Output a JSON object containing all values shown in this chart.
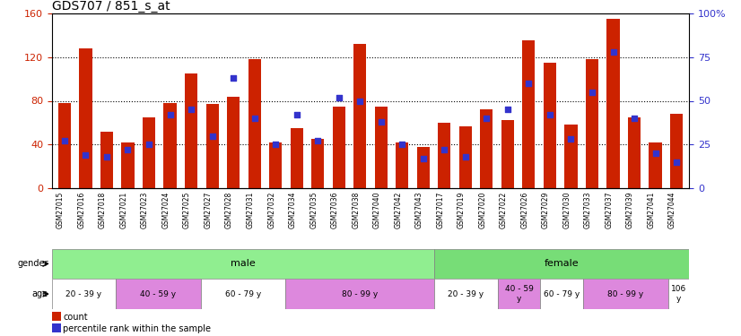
{
  "title": "GDS707 / 851_s_at",
  "samples": [
    "GSM27015",
    "GSM27016",
    "GSM27018",
    "GSM27021",
    "GSM27023",
    "GSM27024",
    "GSM27025",
    "GSM27027",
    "GSM27028",
    "GSM27031",
    "GSM27032",
    "GSM27034",
    "GSM27035",
    "GSM27036",
    "GSM27038",
    "GSM27040",
    "GSM27042",
    "GSM27043",
    "GSM27017",
    "GSM27019",
    "GSM27020",
    "GSM27022",
    "GSM27026",
    "GSM27029",
    "GSM27030",
    "GSM27033",
    "GSM27037",
    "GSM27039",
    "GSM27041",
    "GSM27044"
  ],
  "counts": [
    78,
    128,
    52,
    42,
    65,
    78,
    105,
    77,
    84,
    118,
    42,
    55,
    45,
    75,
    132,
    75,
    42,
    38,
    60,
    57,
    72,
    62,
    135,
    115,
    58,
    118,
    155,
    65,
    42,
    68
  ],
  "percentiles": [
    27,
    19,
    18,
    22,
    25,
    42,
    45,
    30,
    63,
    40,
    25,
    42,
    27,
    52,
    50,
    38,
    25,
    17,
    22,
    18,
    40,
    45,
    60,
    42,
    28,
    55,
    78,
    40,
    20,
    15
  ],
  "gender_groups": [
    {
      "label": "male",
      "start": 0,
      "end": 18,
      "color": "#90ee90"
    },
    {
      "label": "female",
      "start": 18,
      "end": 30,
      "color": "#77dd77"
    }
  ],
  "age_groups": [
    {
      "label": "20 - 39 y",
      "start": 0,
      "end": 3,
      "color": "#ffffff"
    },
    {
      "label": "40 - 59 y",
      "start": 3,
      "end": 7,
      "color": "#dd88dd"
    },
    {
      "label": "60 - 79 y",
      "start": 7,
      "end": 11,
      "color": "#ffffff"
    },
    {
      "label": "80 - 99 y",
      "start": 11,
      "end": 18,
      "color": "#dd88dd"
    },
    {
      "label": "20 - 39 y",
      "start": 18,
      "end": 21,
      "color": "#ffffff"
    },
    {
      "label": "40 - 59\ny",
      "start": 21,
      "end": 23,
      "color": "#dd88dd"
    },
    {
      "label": "60 - 79 y",
      "start": 23,
      "end": 25,
      "color": "#ffffff"
    },
    {
      "label": "80 - 99 y",
      "start": 25,
      "end": 29,
      "color": "#dd88dd"
    },
    {
      "label": "106\ny",
      "start": 29,
      "end": 30,
      "color": "#ffffff"
    }
  ],
  "bar_color": "#cc2200",
  "dot_color": "#3333cc",
  "ylim_left": [
    0,
    160
  ],
  "ylim_right": [
    0,
    100
  ],
  "yticks_left": [
    0,
    40,
    80,
    120,
    160
  ],
  "yticks_right": [
    0,
    25,
    50,
    75,
    100
  ],
  "ytick_labels_right": [
    "0",
    "25",
    "50",
    "75",
    "100%"
  ]
}
